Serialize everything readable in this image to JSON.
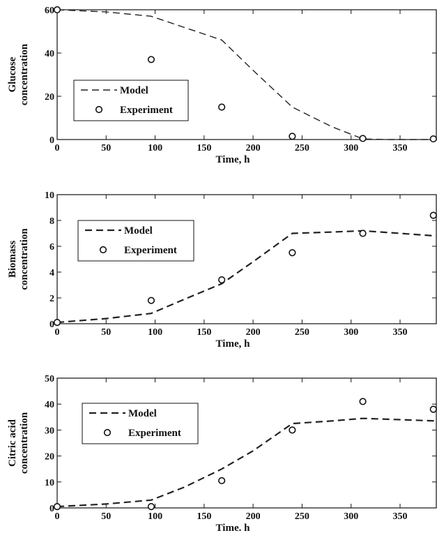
{
  "chart_data": [
    {
      "type": "line",
      "xlabel": "Time, h",
      "ylabel": [
        "Glucose",
        "concentration"
      ],
      "xlim": [
        0,
        387
      ],
      "ylim": [
        0,
        60
      ],
      "xticks": [
        0,
        50,
        100,
        150,
        200,
        250,
        300,
        350
      ],
      "yticks": [
        0,
        20,
        40,
        60
      ],
      "grid": false,
      "legend_position": "middle-left",
      "series": [
        {
          "name": "Model",
          "kind": "dashed-line",
          "x": [
            0,
            50,
            96,
            168,
            200,
            240,
            280,
            312,
            340,
            387
          ],
          "y": [
            60,
            59,
            57,
            46,
            32,
            15,
            6,
            0.3,
            0,
            0
          ]
        },
        {
          "name": "Experiment",
          "kind": "open-circle",
          "x": [
            0,
            96,
            168,
            240,
            312,
            384
          ],
          "y": [
            60,
            37,
            15,
            1.5,
            0.5,
            0.3
          ]
        }
      ]
    },
    {
      "type": "line",
      "xlabel": "Time, h",
      "ylabel": [
        "Biomass",
        "concentration"
      ],
      "xlim": [
        0,
        387
      ],
      "ylim": [
        0,
        10
      ],
      "xticks": [
        0,
        50,
        100,
        150,
        200,
        250,
        300,
        350
      ],
      "yticks": [
        0,
        2,
        4,
        6,
        8,
        10
      ],
      "grid": false,
      "legend_position": "top-left",
      "series": [
        {
          "name": "Model",
          "kind": "dashed-line",
          "x": [
            0,
            50,
            96,
            130,
            168,
            200,
            240,
            280,
            312,
            350,
            387
          ],
          "y": [
            0.1,
            0.4,
            0.8,
            1.9,
            3.1,
            4.8,
            7.0,
            7.1,
            7.2,
            7.0,
            6.8
          ]
        },
        {
          "name": "Experiment",
          "kind": "open-circle",
          "x": [
            0,
            96,
            168,
            240,
            312,
            384
          ],
          "y": [
            0.1,
            1.8,
            3.4,
            5.5,
            7.0,
            8.4
          ]
        }
      ]
    },
    {
      "type": "line",
      "xlabel": "Time. h",
      "ylabel": [
        "Citric acid",
        "concentration"
      ],
      "xlim": [
        0,
        387
      ],
      "ylim": [
        0,
        50
      ],
      "xticks": [
        0,
        50,
        100,
        150,
        200,
        250,
        300,
        350
      ],
      "yticks": [
        0,
        10,
        20,
        30,
        40,
        50
      ],
      "grid": false,
      "legend_position": "top-left",
      "series": [
        {
          "name": "Model",
          "kind": "dashed-line",
          "x": [
            0,
            50,
            96,
            130,
            168,
            200,
            240,
            280,
            312,
            350,
            387
          ],
          "y": [
            0.5,
            1.5,
            3,
            8,
            15,
            22,
            32.5,
            33.5,
            34.5,
            34,
            33.5
          ]
        },
        {
          "name": "Experiment",
          "kind": "open-circle",
          "x": [
            0,
            96,
            168,
            240,
            312,
            384
          ],
          "y": [
            0.5,
            0.5,
            10.5,
            30,
            41,
            38
          ]
        }
      ]
    }
  ]
}
